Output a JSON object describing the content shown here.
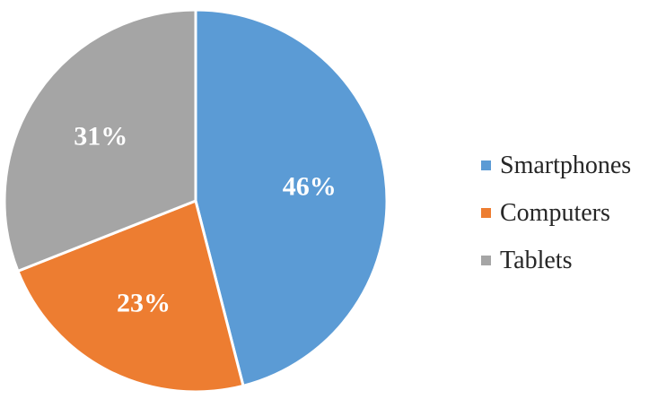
{
  "chart_data": {
    "type": "pie",
    "title": "",
    "categories": [
      "Smartphones",
      "Computers",
      "Tablets"
    ],
    "values": [
      46,
      23,
      31
    ],
    "value_labels": [
      "46%",
      "23%",
      "31%"
    ],
    "colors": [
      "#5b9bd5",
      "#ed7d31",
      "#a5a5a5"
    ],
    "label_color": "#ffffff",
    "start_angle_deg": 0,
    "direction": "clockwise",
    "legend_position": "right"
  },
  "legend": {
    "items": [
      {
        "label": "Smartphones",
        "color": "#5b9bd5"
      },
      {
        "label": "Computers",
        "color": "#ed7d31"
      },
      {
        "label": "Tablets",
        "color": "#a5a5a5"
      }
    ]
  }
}
